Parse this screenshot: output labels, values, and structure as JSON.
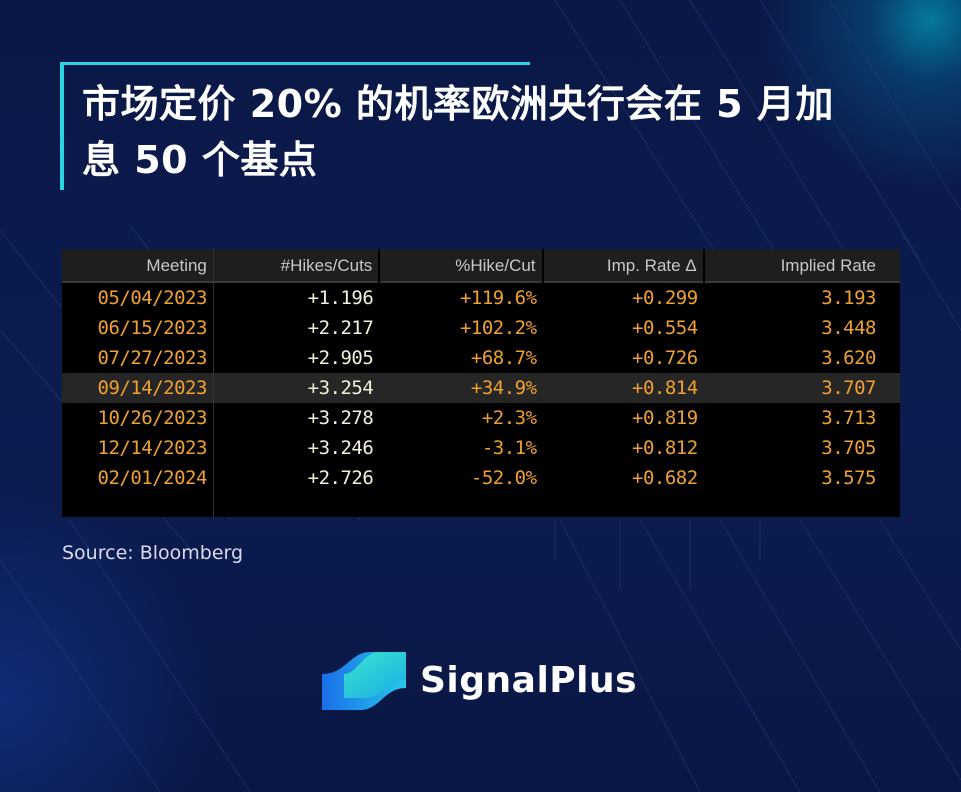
{
  "title": "市场定价 20% 的机率欧洲央行会在 5 月加息 50 个基点",
  "table": {
    "headers": [
      "Meeting",
      "#Hikes/Cuts",
      "%Hike/Cut",
      "Imp. Rate Δ",
      "Implied Rate"
    ],
    "rows": [
      {
        "meeting": "05/04/2023",
        "hikes": "+1.196",
        "pct": "+119.6%",
        "imp": "+0.299",
        "rate": "3.193"
      },
      {
        "meeting": "06/15/2023",
        "hikes": "+2.217",
        "pct": "+102.2%",
        "imp": "+0.554",
        "rate": "3.448"
      },
      {
        "meeting": "07/27/2023",
        "hikes": "+2.905",
        "pct": "+68.7%",
        "imp": "+0.726",
        "rate": "3.620"
      },
      {
        "meeting": "09/14/2023",
        "hikes": "+3.254",
        "pct": "+34.9%",
        "imp": "+0.814",
        "rate": "3.707"
      },
      {
        "meeting": "10/26/2023",
        "hikes": "+3.278",
        "pct": "+2.3%",
        "imp": "+0.819",
        "rate": "3.713"
      },
      {
        "meeting": "12/14/2023",
        "hikes": "+3.246",
        "pct": "-3.1%",
        "imp": "+0.812",
        "rate": "3.705"
      },
      {
        "meeting": "02/01/2024",
        "hikes": "+2.726",
        "pct": "-52.0%",
        "imp": "+0.682",
        "rate": "3.575"
      }
    ],
    "highlighted_row": 3
  },
  "source": "Source: Bloomberg",
  "brand": {
    "name": "SignalPlus",
    "icon": "signalplus-logo-icon"
  },
  "colors": {
    "background": "#0b1a4a",
    "accent": "#2ad4e0",
    "table_orange": "#f0a030",
    "table_white": "#f3f0d8"
  }
}
